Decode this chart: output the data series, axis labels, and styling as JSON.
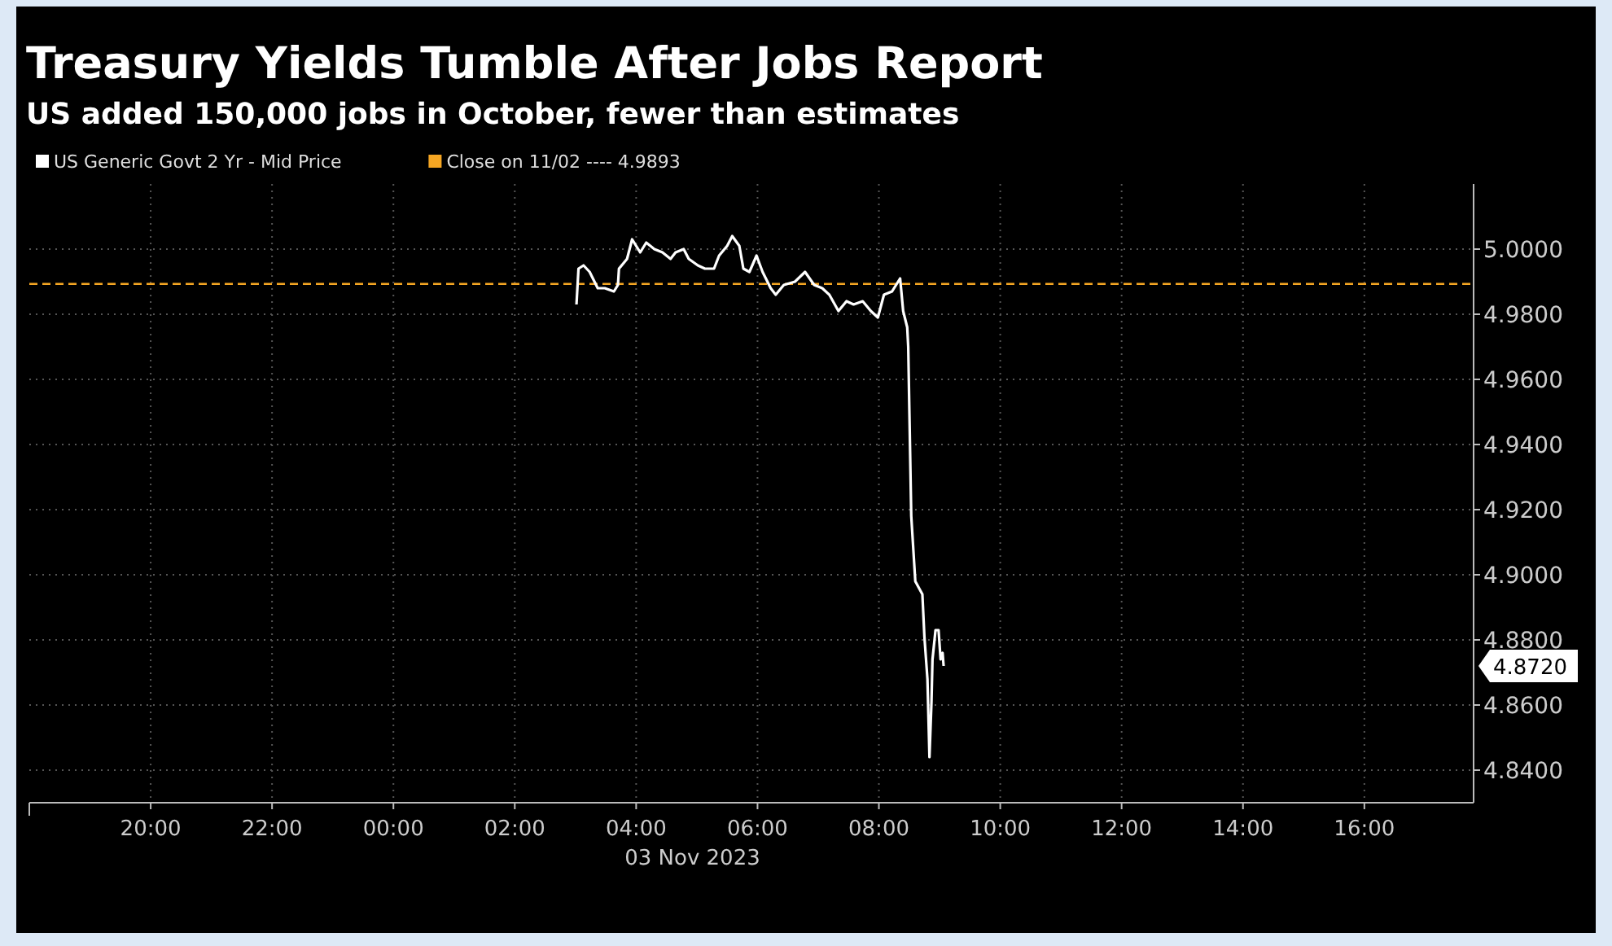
{
  "chart_data": {
    "type": "line",
    "title": "Treasury Yields Tumble After Jobs Report",
    "subtitle": "US added 150,000 jobs in October, fewer than estimates",
    "xlabel": "03 Nov 2023",
    "x": [
      "2023-11-03T03:01",
      "2023-11-03T03:03",
      "2023-11-03T03:08",
      "2023-11-03T03:14",
      "2023-11-03T03:22",
      "2023-11-03T03:29",
      "2023-11-03T03:38",
      "2023-11-03T03:42",
      "2023-11-03T03:43",
      "2023-11-03T03:51",
      "2023-11-03T03:56",
      "2023-11-03T04:04",
      "2023-11-03T04:10",
      "2023-11-03T04:18",
      "2023-11-03T04:26",
      "2023-11-03T04:34",
      "2023-11-03T04:39",
      "2023-11-03T04:47",
      "2023-11-03T04:52",
      "2023-11-03T05:01",
      "2023-11-03T05:08",
      "2023-11-03T05:17",
      "2023-11-03T05:22",
      "2023-11-03T05:30",
      "2023-11-03T05:35",
      "2023-11-03T05:42",
      "2023-11-03T05:46",
      "2023-11-03T05:52",
      "2023-11-03T05:59",
      "2023-11-03T06:05",
      "2023-11-03T06:13",
      "2023-11-03T06:18",
      "2023-11-03T06:26",
      "2023-11-03T06:37",
      "2023-11-03T06:47",
      "2023-11-03T06:56",
      "2023-11-03T07:04",
      "2023-11-03T07:11",
      "2023-11-03T07:20",
      "2023-11-03T07:28",
      "2023-11-03T07:35",
      "2023-11-03T07:44",
      "2023-11-03T07:52",
      "2023-11-03T07:59",
      "2023-11-03T08:05",
      "2023-11-03T08:13",
      "2023-11-03T08:21",
      "2023-11-03T08:24",
      "2023-11-03T08:28",
      "2023-11-03T08:29",
      "2023-11-03T08:32",
      "2023-11-03T08:34",
      "2023-11-03T08:36",
      "2023-11-03T08:43",
      "2023-11-03T08:45",
      "2023-11-03T08:48",
      "2023-11-03T08:50",
      "2023-11-03T08:52",
      "2023-11-03T08:53",
      "2023-11-03T08:56",
      "2023-11-03T08:59",
      "2023-11-03T09:01",
      "2023-11-03T09:03",
      "2023-11-03T09:04"
    ],
    "series": [
      {
        "name": "US Generic Govt 2 Yr - Mid Price",
        "color": "#ffffff",
        "values": [
          4.983,
          4.994,
          4.995,
          4.993,
          4.988,
          4.988,
          4.987,
          4.989,
          4.994,
          4.997,
          5.003,
          4.999,
          5.002,
          5.0,
          4.999,
          4.997,
          4.999,
          5.0,
          4.997,
          4.995,
          4.994,
          4.994,
          4.998,
          5.001,
          5.004,
          5.001,
          4.994,
          4.993,
          4.998,
          4.993,
          4.988,
          4.986,
          4.989,
          4.99,
          4.993,
          4.989,
          4.988,
          4.986,
          4.981,
          4.984,
          4.983,
          4.984,
          4.981,
          4.979,
          4.986,
          4.987,
          4.991,
          4.981,
          4.976,
          4.97,
          4.918,
          4.908,
          4.898,
          4.894,
          4.881,
          4.868,
          4.844,
          4.861,
          4.874,
          4.883,
          4.883,
          4.874,
          4.876,
          4.872
        ]
      }
    ],
    "xlim": [
      "2023-11-02T18:00",
      "2023-11-03T17:48"
    ],
    "xticks": [
      {
        "value": "2023-11-02T20:00",
        "label": "20:00"
      },
      {
        "value": "2023-11-02T22:00",
        "label": "22:00"
      },
      {
        "value": "2023-11-03T00:00",
        "label": "00:00"
      },
      {
        "value": "2023-11-03T02:00",
        "label": "02:00"
      },
      {
        "value": "2023-11-03T04:00",
        "label": "04:00"
      },
      {
        "value": "2023-11-03T06:00",
        "label": "06:00"
      },
      {
        "value": "2023-11-03T08:00",
        "label": "08:00"
      },
      {
        "value": "2023-11-03T10:00",
        "label": "10:00"
      },
      {
        "value": "2023-11-03T12:00",
        "label": "12:00"
      },
      {
        "value": "2023-11-03T14:00",
        "label": "14:00"
      },
      {
        "value": "2023-11-03T16:00",
        "label": "16:00"
      }
    ],
    "ylim": [
      4.83,
      5.02
    ],
    "yticks": [
      {
        "value": 4.84,
        "label": "4.8400"
      },
      {
        "value": 4.86,
        "label": "4.8600"
      },
      {
        "value": 4.88,
        "label": "4.8800"
      },
      {
        "value": 4.9,
        "label": "4.9000"
      },
      {
        "value": 4.92,
        "label": "4.9200"
      },
      {
        "value": 4.94,
        "label": "4.9400"
      },
      {
        "value": 4.96,
        "label": "4.9600"
      },
      {
        "value": 4.98,
        "label": "4.9800"
      },
      {
        "value": 5.0,
        "label": "5.0000"
      }
    ],
    "ref_lines": [
      {
        "axis": "y",
        "value": 4.9893,
        "label": "Close on 11/02 ---- 4.9893",
        "color": "#f5a623",
        "line_style": "dashed"
      }
    ],
    "annotations": [
      "4.8720"
    ],
    "grid": true,
    "legend": "top left",
    "line_style": "solid",
    "marker": "none"
  }
}
